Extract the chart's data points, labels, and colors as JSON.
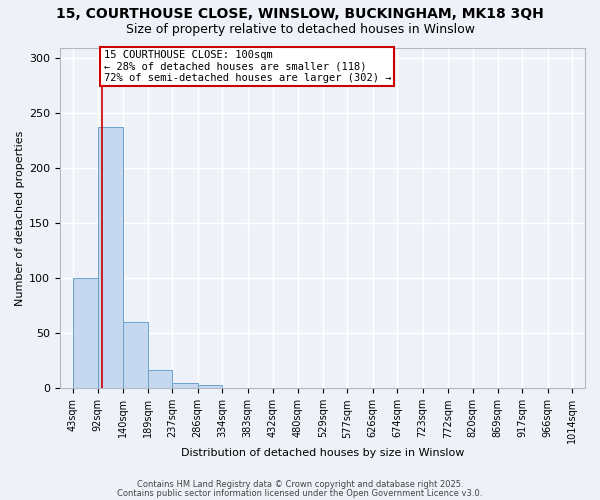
{
  "title_line1": "15, COURTHOUSE CLOSE, WINSLOW, BUCKINGHAM, MK18 3QH",
  "title_line2": "Size of property relative to detached houses in Winslow",
  "xlabel": "Distribution of detached houses by size in Winslow",
  "ylabel": "Number of detached properties",
  "bin_edges": [
    43,
    92,
    140,
    189,
    237,
    286,
    334,
    383,
    432,
    480,
    529,
    577,
    626,
    674,
    723,
    772,
    820,
    869,
    917,
    966,
    1014
  ],
  "bar_heights": [
    100,
    238,
    60,
    17,
    5,
    3,
    0,
    0,
    0,
    0,
    0,
    0,
    0,
    0,
    0,
    0,
    0,
    0,
    0,
    0
  ],
  "bar_color": "#c5d8f0",
  "bar_edge_color": "#6ba3cb",
  "property_size": 100,
  "red_line_color": "#cc0000",
  "annotation_line1": "15 COURTHOUSE CLOSE: 100sqm",
  "annotation_line2": "← 28% of detached houses are smaller (118)",
  "annotation_line3": "72% of semi-detached houses are larger (302) →",
  "annotation_box_color": "#ffffff",
  "annotation_box_edge": "#cc0000",
  "ylim": [
    0,
    310
  ],
  "yticks": [
    0,
    50,
    100,
    150,
    200,
    250,
    300
  ],
  "footer_line1": "Contains HM Land Registry data © Crown copyright and database right 2025.",
  "footer_line2": "Contains public sector information licensed under the Open Government Licence v3.0.",
  "background_color": "#eef2f8",
  "grid_color": "#ffffff",
  "title_fontsize": 10,
  "subtitle_fontsize": 9,
  "axis_label_fontsize": 8,
  "tick_fontsize": 7,
  "annotation_fontsize": 7.5
}
